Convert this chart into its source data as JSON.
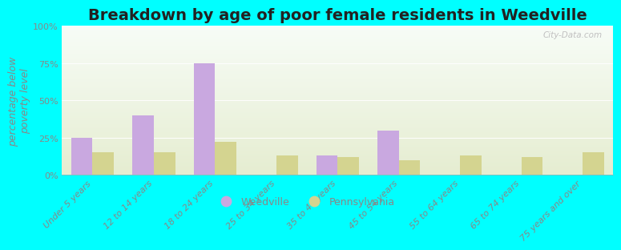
{
  "title": "Breakdown by age of poor female residents in Weedville",
  "ylabel": "percentage below\npoverty level",
  "categories": [
    "Under 5 years",
    "12 to 14 years",
    "18 to 24 years",
    "25 to 34 years",
    "35 to 44 years",
    "45 to 54 years",
    "55 to 64 years",
    "65 to 74 years",
    "75 years and over"
  ],
  "weedville": [
    25,
    40,
    75,
    0,
    13,
    30,
    0,
    0,
    0
  ],
  "pennsylvania": [
    15,
    15,
    22,
    13,
    12,
    10,
    13,
    12,
    15
  ],
  "weedville_color": "#c9a8e0",
  "pennsylvania_color": "#d4d490",
  "background_color": "#00ffff",
  "bar_width": 0.35,
  "ylim": [
    0,
    100
  ],
  "yticks": [
    0,
    25,
    50,
    75,
    100
  ],
  "ytick_labels": [
    "0%",
    "25%",
    "50%",
    "75%",
    "100%"
  ],
  "title_fontsize": 14,
  "axis_label_fontsize": 9,
  "tick_fontsize": 8,
  "legend_labels": [
    "Weedville",
    "Pennsylvania"
  ],
  "watermark": "City-Data.com",
  "plot_bg_colors": [
    "#f8fbf5",
    "#e8f0d8"
  ],
  "grid_color": "#d8e8c8",
  "text_color": "#888888"
}
